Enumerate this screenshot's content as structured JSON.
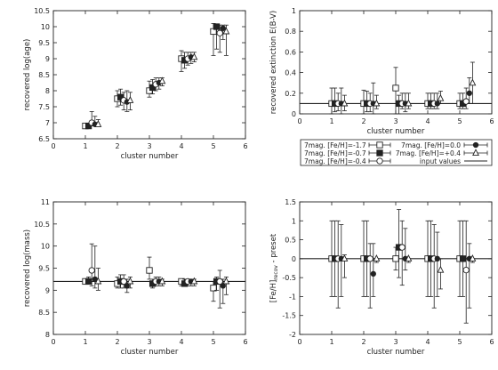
{
  "chart_data": [
    {
      "type": "scatter",
      "title": "",
      "xlabel": "cluster number",
      "ylabel": "recovered log(age)",
      "xlim": [
        0,
        6
      ],
      "ylim": [
        6.5,
        10.5
      ],
      "xticks": [
        "0",
        "1",
        "2",
        "3",
        "4",
        "5",
        "6"
      ],
      "yticks": [
        "6.5",
        "7",
        "7.5",
        "8",
        "8.5",
        "9",
        "9.5",
        "10",
        "10.5"
      ],
      "grid": false,
      "reference_line": null,
      "series": [
        {
          "name": "7mag. [Fe/H]=-1.7",
          "marker": "square-open",
          "points": [
            {
              "x": 1.0,
              "y": 6.9,
              "lo": 6.9,
              "hi": 6.95
            },
            {
              "x": 2.0,
              "y": 7.75,
              "lo": 7.5,
              "hi": 8.0
            },
            {
              "x": 3.0,
              "y": 8.0,
              "lo": 7.8,
              "hi": 8.3
            },
            {
              "x": 4.0,
              "y": 9.0,
              "lo": 8.6,
              "hi": 9.25
            },
            {
              "x": 5.0,
              "y": 9.85,
              "lo": 9.1,
              "hi": 10.1
            }
          ]
        },
        {
          "name": "7mag. [Fe/H]=-0.7",
          "marker": "square-filled",
          "points": [
            {
              "x": 1.1,
              "y": 6.9,
              "lo": 6.9,
              "hi": 6.95
            },
            {
              "x": 2.1,
              "y": 7.8,
              "lo": 7.55,
              "hi": 8.05
            },
            {
              "x": 3.1,
              "y": 8.1,
              "lo": 7.9,
              "hi": 8.35
            },
            {
              "x": 4.1,
              "y": 8.95,
              "lo": 8.7,
              "hi": 9.2
            },
            {
              "x": 5.1,
              "y": 10.0,
              "lo": 9.3,
              "hi": 10.05
            }
          ]
        },
        {
          "name": "7mag. [Fe/H]=-0.4",
          "marker": "circle-open",
          "points": [
            {
              "x": 1.2,
              "y": 7.0,
              "lo": 6.9,
              "hi": 7.35
            },
            {
              "x": 2.2,
              "y": 7.7,
              "lo": 7.4,
              "hi": 7.95
            },
            {
              "x": 3.2,
              "y": 8.2,
              "lo": 8.0,
              "hi": 8.4
            },
            {
              "x": 4.2,
              "y": 9.0,
              "lo": 8.8,
              "hi": 9.2
            },
            {
              "x": 5.2,
              "y": 9.8,
              "lo": 9.2,
              "hi": 10.05
            }
          ]
        },
        {
          "name": "7mag. [Fe/H]=0.0",
          "marker": "circle-filled",
          "points": [
            {
              "x": 1.3,
              "y": 6.95,
              "lo": 6.9,
              "hi": 7.2
            },
            {
              "x": 2.3,
              "y": 7.65,
              "lo": 7.35,
              "hi": 8.0
            },
            {
              "x": 3.3,
              "y": 8.25,
              "lo": 8.05,
              "hi": 8.4
            },
            {
              "x": 4.3,
              "y": 9.05,
              "lo": 8.85,
              "hi": 9.2
            },
            {
              "x": 5.3,
              "y": 9.95,
              "lo": 9.6,
              "hi": 10.05
            }
          ]
        },
        {
          "name": "7mag. [Fe/H]=+0.4",
          "marker": "triangle-open",
          "points": [
            {
              "x": 1.4,
              "y": 6.95,
              "lo": 6.9,
              "hi": 7.1
            },
            {
              "x": 2.4,
              "y": 7.7,
              "lo": 7.4,
              "hi": 7.95
            },
            {
              "x": 3.4,
              "y": 8.3,
              "lo": 8.15,
              "hi": 8.4
            },
            {
              "x": 4.4,
              "y": 9.05,
              "lo": 8.9,
              "hi": 9.2
            },
            {
              "x": 5.4,
              "y": 9.85,
              "lo": 9.1,
              "hi": 10.05
            }
          ]
        }
      ]
    },
    {
      "type": "scatter",
      "title": "",
      "xlabel": "cluster number",
      "ylabel": "recovered extinction E(B-V)",
      "xlim": [
        0,
        6
      ],
      "ylim": [
        0,
        1
      ],
      "xticks": [
        "0",
        "1",
        "2",
        "3",
        "4",
        "5",
        "6"
      ],
      "yticks": [
        "0",
        "0.2",
        "0.4",
        "0.6",
        "0.8",
        "1"
      ],
      "grid": false,
      "reference_line": 0.1,
      "series": [
        {
          "name": "7mag. [Fe/H]=-1.7",
          "marker": "square-open",
          "points": [
            {
              "x": 1.0,
              "y": 0.1,
              "lo": 0.0,
              "hi": 0.25
            },
            {
              "x": 2.0,
              "y": 0.1,
              "lo": 0.0,
              "hi": 0.23
            },
            {
              "x": 3.0,
              "y": 0.25,
              "lo": 0.0,
              "hi": 0.45
            },
            {
              "x": 4.0,
              "y": 0.1,
              "lo": 0.05,
              "hi": 0.2
            },
            {
              "x": 5.0,
              "y": 0.1,
              "lo": 0.05,
              "hi": 0.2
            }
          ]
        },
        {
          "name": "7mag. [Fe/H]=-0.7",
          "marker": "square-filled",
          "points": [
            {
              "x": 1.1,
              "y": 0.1,
              "lo": 0.02,
              "hi": 0.25
            },
            {
              "x": 2.1,
              "y": 0.1,
              "lo": 0.02,
              "hi": 0.22
            },
            {
              "x": 3.1,
              "y": 0.1,
              "lo": 0.0,
              "hi": 0.18
            },
            {
              "x": 4.1,
              "y": 0.1,
              "lo": 0.05,
              "hi": 0.2
            },
            {
              "x": 5.1,
              "y": 0.1,
              "lo": 0.05,
              "hi": 0.2
            }
          ]
        },
        {
          "name": "7mag. [Fe/H]=-0.4",
          "marker": "circle-open",
          "points": [
            {
              "x": 1.2,
              "y": 0.1,
              "lo": 0.03,
              "hi": 0.2
            },
            {
              "x": 2.2,
              "y": 0.1,
              "lo": 0.02,
              "hi": 0.2
            },
            {
              "x": 3.2,
              "y": 0.1,
              "lo": 0.05,
              "hi": 0.2
            },
            {
              "x": 4.2,
              "y": 0.1,
              "lo": 0.05,
              "hi": 0.2
            },
            {
              "x": 5.2,
              "y": 0.12,
              "lo": 0.05,
              "hi": 0.25
            }
          ]
        },
        {
          "name": "7mag. [Fe/H]=0.0",
          "marker": "circle-filled",
          "points": [
            {
              "x": 1.3,
              "y": 0.1,
              "lo": 0.0,
              "hi": 0.25
            },
            {
              "x": 2.3,
              "y": 0.1,
              "lo": 0.0,
              "hi": 0.3
            },
            {
              "x": 3.3,
              "y": 0.1,
              "lo": 0.02,
              "hi": 0.2
            },
            {
              "x": 4.3,
              "y": 0.1,
              "lo": 0.05,
              "hi": 0.2
            },
            {
              "x": 5.3,
              "y": 0.2,
              "lo": 0.1,
              "hi": 0.35
            }
          ]
        },
        {
          "name": "7mag. [Fe/H]=+0.4",
          "marker": "triangle-open",
          "points": [
            {
              "x": 1.4,
              "y": 0.1,
              "lo": 0.03,
              "hi": 0.18
            },
            {
              "x": 2.4,
              "y": 0.1,
              "lo": 0.05,
              "hi": 0.18
            },
            {
              "x": 3.4,
              "y": 0.1,
              "lo": 0.05,
              "hi": 0.2
            },
            {
              "x": 4.4,
              "y": 0.15,
              "lo": 0.1,
              "hi": 0.22
            },
            {
              "x": 5.4,
              "y": 0.3,
              "lo": 0.1,
              "hi": 0.5
            }
          ]
        }
      ]
    },
    {
      "type": "scatter",
      "title": "",
      "xlabel": "cluster number",
      "ylabel": "recovered log(mass)",
      "xlim": [
        0,
        6
      ],
      "ylim": [
        8,
        11
      ],
      "xticks": [
        "0",
        "1",
        "2",
        "3",
        "4",
        "5",
        "6"
      ],
      "yticks": [
        "8",
        "8.5",
        "9",
        "9.5",
        "10",
        "10.5",
        "11"
      ],
      "grid": false,
      "reference_line": 9.2,
      "series": [
        {
          "name": "7mag. [Fe/H]=-1.7",
          "marker": "square-open",
          "points": [
            {
              "x": 1.0,
              "y": 9.2,
              "lo": 9.15,
              "hi": 9.25
            },
            {
              "x": 2.0,
              "y": 9.15,
              "lo": 9.05,
              "hi": 9.3
            },
            {
              "x": 3.0,
              "y": 9.45,
              "lo": 9.25,
              "hi": 9.75
            },
            {
              "x": 4.0,
              "y": 9.2,
              "lo": 9.1,
              "hi": 9.25
            },
            {
              "x": 5.0,
              "y": 9.05,
              "lo": 8.75,
              "hi": 9.2
            }
          ]
        },
        {
          "name": "7mag. [Fe/H]=-0.7",
          "marker": "square-filled",
          "points": [
            {
              "x": 1.1,
              "y": 9.2,
              "lo": 9.15,
              "hi": 9.3
            },
            {
              "x": 2.1,
              "y": 9.2,
              "lo": 9.05,
              "hi": 9.35
            },
            {
              "x": 3.1,
              "y": 9.15,
              "lo": 9.05,
              "hi": 9.25
            },
            {
              "x": 4.1,
              "y": 9.15,
              "lo": 9.1,
              "hi": 9.25
            },
            {
              "x": 5.1,
              "y": 9.2,
              "lo": 9.0,
              "hi": 9.3
            }
          ]
        },
        {
          "name": "7mag. [Fe/H]=-0.4",
          "marker": "circle-open",
          "points": [
            {
              "x": 1.2,
              "y": 9.45,
              "lo": 9.1,
              "hi": 10.05
            },
            {
              "x": 2.2,
              "y": 9.2,
              "lo": 9.05,
              "hi": 9.35
            },
            {
              "x": 3.2,
              "y": 9.2,
              "lo": 9.1,
              "hi": 9.3
            },
            {
              "x": 4.2,
              "y": 9.2,
              "lo": 9.1,
              "hi": 9.25
            },
            {
              "x": 5.2,
              "y": 9.2,
              "lo": 8.6,
              "hi": 9.45
            }
          ]
        },
        {
          "name": "7mag. [Fe/H]=0.0",
          "marker": "circle-filled",
          "points": [
            {
              "x": 1.3,
              "y": 9.25,
              "lo": 9.05,
              "hi": 10.0
            },
            {
              "x": 2.3,
              "y": 9.1,
              "lo": 8.95,
              "hi": 9.25
            },
            {
              "x": 3.3,
              "y": 9.2,
              "lo": 9.1,
              "hi": 9.3
            },
            {
              "x": 4.3,
              "y": 9.2,
              "lo": 9.1,
              "hi": 9.25
            },
            {
              "x": 5.3,
              "y": 9.1,
              "lo": 8.7,
              "hi": 9.25
            }
          ]
        },
        {
          "name": "7mag. [Fe/H]=+0.4",
          "marker": "triangle-open",
          "points": [
            {
              "x": 1.4,
              "y": 9.2,
              "lo": 9.0,
              "hi": 9.5
            },
            {
              "x": 2.4,
              "y": 9.2,
              "lo": 9.05,
              "hi": 9.3
            },
            {
              "x": 3.4,
              "y": 9.2,
              "lo": 9.1,
              "hi": 9.25
            },
            {
              "x": 4.4,
              "y": 9.2,
              "lo": 9.1,
              "hi": 9.25
            },
            {
              "x": 5.4,
              "y": 9.2,
              "lo": 8.9,
              "hi": 9.3
            }
          ]
        }
      ]
    },
    {
      "type": "scatter",
      "title": "",
      "xlabel": "cluster number",
      "ylabel_main": "[Fe/H]",
      "ylabel_sub": "recov",
      "ylabel_tail": " - preset",
      "xlim": [
        0,
        6
      ],
      "ylim": [
        -2,
        1.5
      ],
      "xticks": [
        "0",
        "1",
        "2",
        "3",
        "4",
        "5",
        "6"
      ],
      "yticks": [
        "-2",
        "-1.5",
        "-1",
        "-0.5",
        "0",
        "0.5",
        "1",
        "1.5"
      ],
      "grid": false,
      "reference_line": 0,
      "series": [
        {
          "name": "7mag. [Fe/H]=-1.7",
          "marker": "square-open",
          "points": [
            {
              "x": 1.0,
              "y": 0.0,
              "lo": -1.0,
              "hi": 1.0
            },
            {
              "x": 2.0,
              "y": 0.0,
              "lo": -1.0,
              "hi": 1.0
            },
            {
              "x": 3.0,
              "y": 0.0,
              "lo": -0.3,
              "hi": 0.3
            },
            {
              "x": 4.0,
              "y": 0.0,
              "lo": -1.0,
              "hi": 1.0
            },
            {
              "x": 5.0,
              "y": 0.0,
              "lo": -1.0,
              "hi": 1.0
            }
          ]
        },
        {
          "name": "7mag. [Fe/H]=-0.7",
          "marker": "square-filled",
          "points": [
            {
              "x": 1.1,
              "y": 0.0,
              "lo": -1.0,
              "hi": 1.0
            },
            {
              "x": 2.1,
              "y": 0.0,
              "lo": -1.0,
              "hi": 1.0
            },
            {
              "x": 3.1,
              "y": 0.3,
              "lo": -0.5,
              "hi": 1.3
            },
            {
              "x": 4.1,
              "y": 0.0,
              "lo": -1.0,
              "hi": 1.0
            },
            {
              "x": 5.1,
              "y": 0.0,
              "lo": -1.0,
              "hi": 1.0
            }
          ]
        },
        {
          "name": "7mag. [Fe/H]=-0.4",
          "marker": "circle-open",
          "points": [
            {
              "x": 1.2,
              "y": 0.0,
              "lo": -1.3,
              "hi": 1.0
            },
            {
              "x": 2.2,
              "y": 0.0,
              "lo": -1.3,
              "hi": 0.4
            },
            {
              "x": 3.2,
              "y": 0.3,
              "lo": -0.7,
              "hi": 1.0
            },
            {
              "x": 4.2,
              "y": 0.0,
              "lo": -1.3,
              "hi": 0.9
            },
            {
              "x": 5.2,
              "y": -0.3,
              "lo": -1.7,
              "hi": 1.0
            }
          ]
        },
        {
          "name": "7mag. [Fe/H]=0.0",
          "marker": "circle-filled",
          "points": [
            {
              "x": 1.3,
              "y": 0.0,
              "lo": -1.0,
              "hi": 0.9
            },
            {
              "x": 2.3,
              "y": -0.4,
              "lo": -1.0,
              "hi": 0.4
            },
            {
              "x": 3.3,
              "y": 0.0,
              "lo": -0.3,
              "hi": 0.8
            },
            {
              "x": 4.3,
              "y": 0.0,
              "lo": -1.0,
              "hi": 0.7
            },
            {
              "x": 5.3,
              "y": 0.0,
              "lo": -1.3,
              "hi": 0.4
            }
          ]
        },
        {
          "name": "7mag. [Fe/H]=+0.4",
          "marker": "triangle-open",
          "points": [
            {
              "x": 1.4,
              "y": 0.0,
              "lo": -0.5,
              "hi": 0.1
            },
            {
              "x": 2.4,
              "y": 0.0,
              "lo": -0.1,
              "hi": 0.0
            },
            {
              "x": 3.4,
              "y": 0.0,
              "lo": -0.1,
              "hi": 0.0
            },
            {
              "x": 4.4,
              "y": -0.3,
              "lo": -0.8,
              "hi": 0.0
            },
            {
              "x": 5.4,
              "y": 0.0,
              "lo": -0.1,
              "hi": 0.0
            }
          ]
        }
      ]
    }
  ],
  "legend": {
    "placement": "between right panels",
    "entries": [
      {
        "label": "7mag. [Fe/H]=-1.7",
        "marker": "square-open"
      },
      {
        "label": "7mag. [Fe/H]=0.0",
        "marker": "circle-filled"
      },
      {
        "label": "7mag. [Fe/H]=-0.7",
        "marker": "square-filled"
      },
      {
        "label": "7mag. [Fe/H]=+0.4",
        "marker": "triangle-open"
      },
      {
        "label": "7mag. [Fe/H]=-0.4",
        "marker": "circle-open"
      },
      {
        "label": "input values",
        "marker": "line"
      }
    ]
  },
  "colors": {
    "ink": "#222222",
    "background": "#ffffff"
  }
}
